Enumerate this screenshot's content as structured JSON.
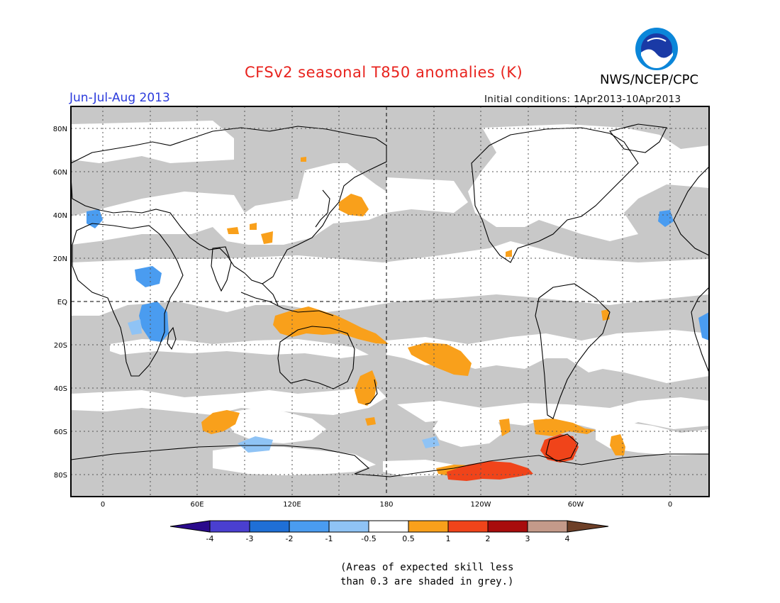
{
  "title": "CFSv2 seasonal T850 anomalies (K)",
  "period": "Jun-Jul-Aug 2013",
  "initial_conditions": "Initial conditions: 1Apr2013-10Apr2013",
  "organization": "NWS/NCEP/CPC",
  "logo_text": "NOAA",
  "footnote_line1": "(Areas of expected skill less",
  "footnote_line2": "than 0.3 are shaded in grey.)",
  "lat_labels": [
    "80N",
    "60N",
    "40N",
    "20N",
    "EQ",
    "20S",
    "40S",
    "60S",
    "80S"
  ],
  "lon_labels": [
    "0",
    "60E",
    "120E",
    "180",
    "120W",
    "60W",
    "0"
  ],
  "legend_labels": [
    "-4",
    "-3",
    "-2",
    "-1",
    "-0.5",
    "0.5",
    "1",
    "2",
    "3",
    "4"
  ],
  "colors": {
    "low_skill_grey": "#c8c8c8",
    "bin_lt_m4": "#2a0a8c",
    "bin_m4_m3": "#4a3fd0",
    "bin_m3_m2": "#1f6fd6",
    "bin_m2_m1": "#4a9cf0",
    "bin_m1_m05": "#8fc3f5",
    "bin_neutral": "#ffffff",
    "bin_05_1": "#f9a01b",
    "bin_1_2": "#f0441a",
    "bin_2_3": "#a80c0c",
    "bin_3_4": "#c49a8a",
    "bin_gt_4": "#6e4028",
    "title_red": "#e8231e",
    "period_blue": "#2b3bdc"
  }
}
